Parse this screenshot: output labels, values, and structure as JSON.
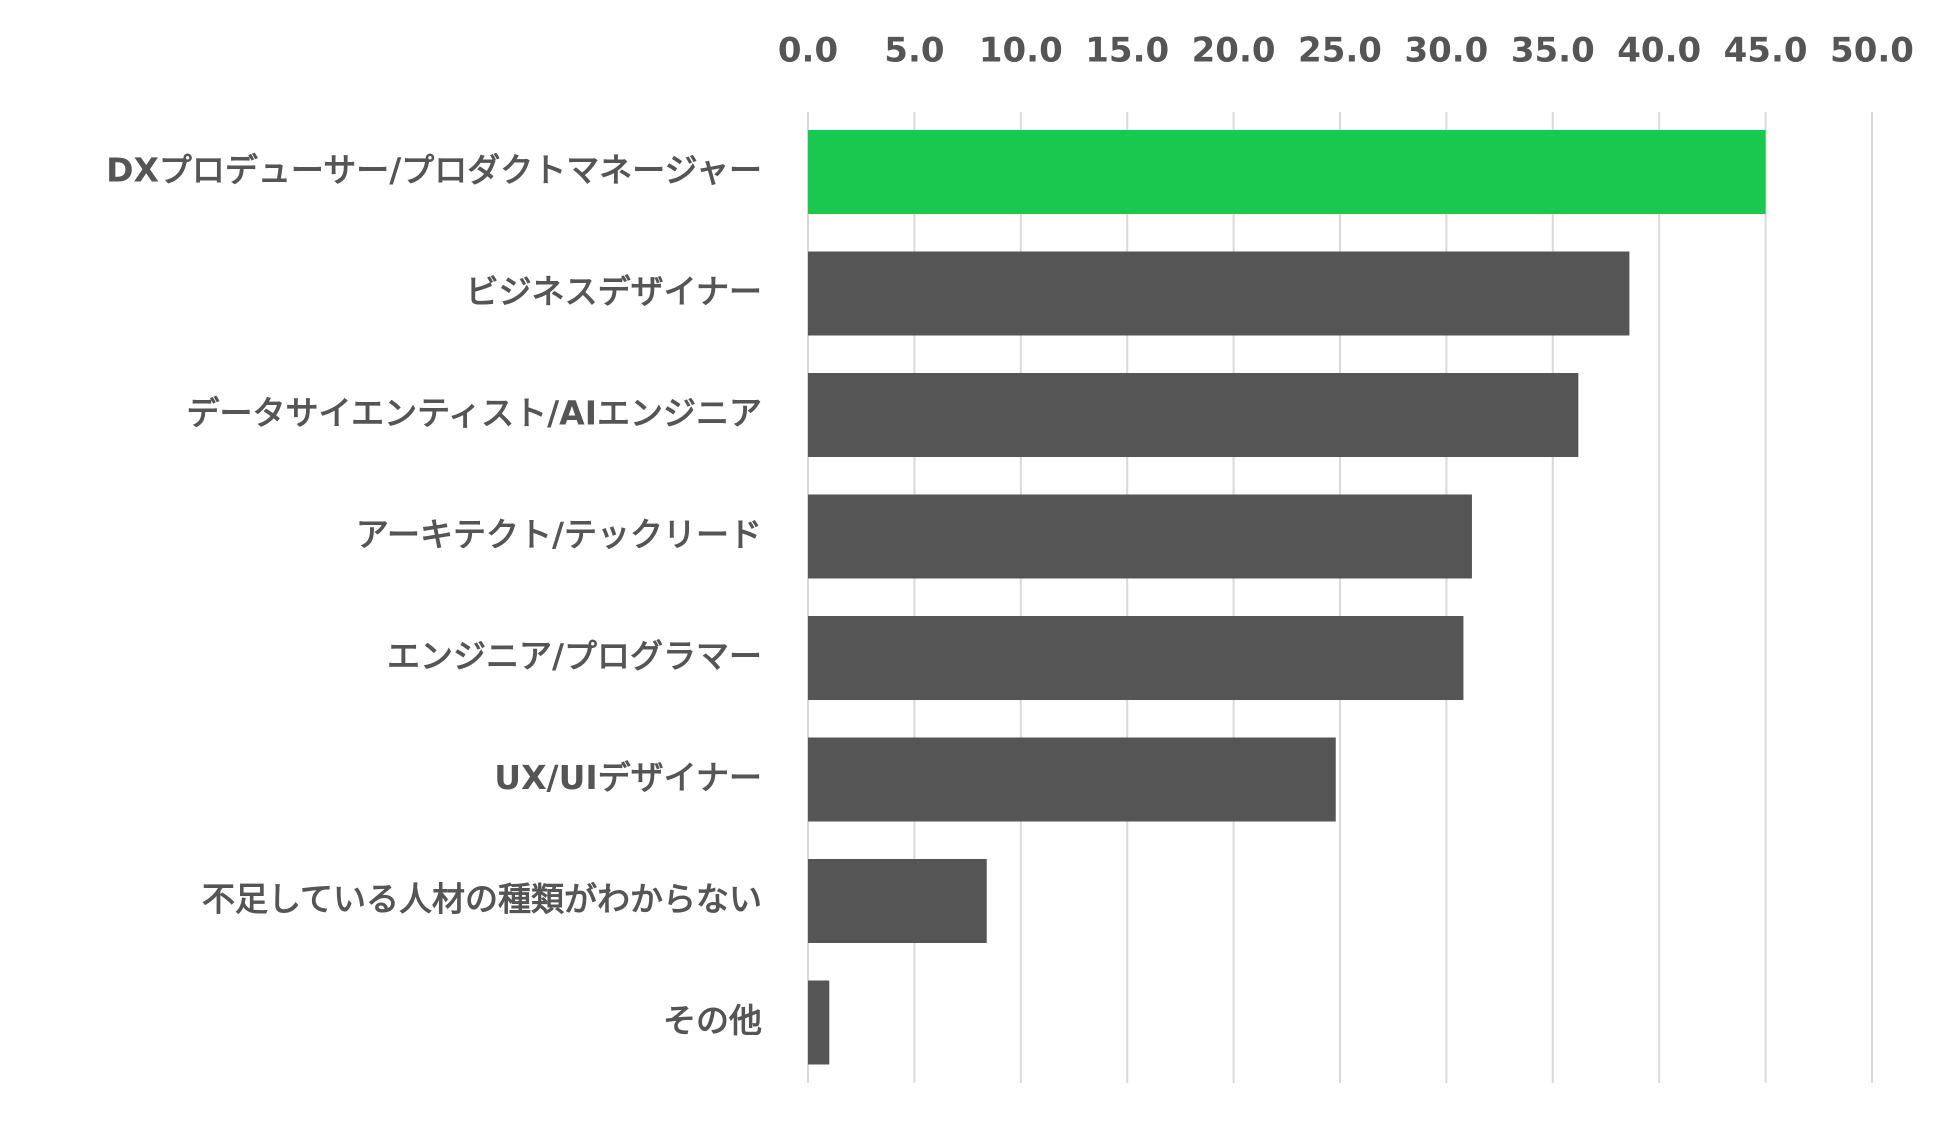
{
  "chart_data": {
    "type": "bar",
    "orientation": "horizontal",
    "title": "",
    "xlabel": "",
    "ylabel": "",
    "xlim": [
      0,
      50
    ],
    "ticks": [
      "0.0",
      "5.0",
      "10.0",
      "15.0",
      "20.0",
      "25.0",
      "30.0",
      "35.0",
      "40.0",
      "45.0",
      "50.0"
    ],
    "tick_values": [
      0,
      5,
      10,
      15,
      20,
      25,
      30,
      35,
      40,
      45,
      50
    ],
    "axis_position": "top",
    "grid": true,
    "legend": "none",
    "categories": [
      "DXプロデューサー/プロダクトマネージャー",
      "ビジネスデザイナー",
      "データサイエンティスト/AIエンジニア",
      "アーキテクト/テックリード",
      "エンジニア/プログラマー",
      "UX/UIデザイナー",
      "不足している人材の種類がわからない",
      "その他"
    ],
    "values": [
      45.0,
      38.6,
      36.2,
      31.2,
      30.8,
      24.8,
      8.4,
      1.0
    ],
    "colors": {
      "highlight": "#19c84f",
      "default": "#555555",
      "grid": "#d9d9d9",
      "text": "#555555"
    },
    "highlight_index": 0
  }
}
